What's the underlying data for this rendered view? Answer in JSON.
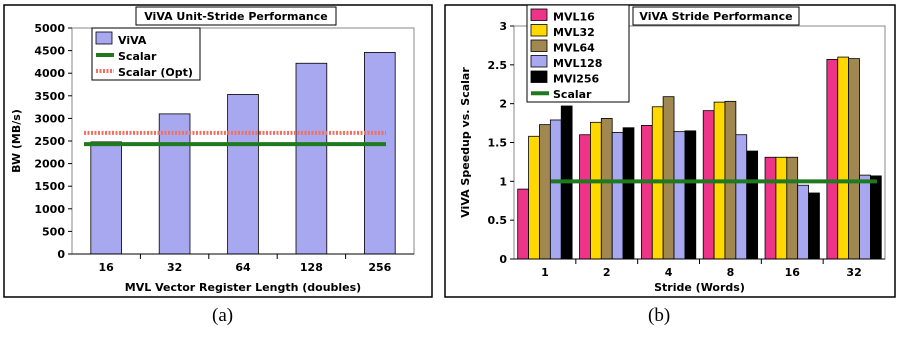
{
  "captions": {
    "a": "(a)",
    "b": "(b)"
  },
  "colors": {
    "viva": "#a8a8f0",
    "scalar": "#1f7a1f",
    "scalar_opt": "#f07060",
    "mvl16": "#ee3488",
    "mvl32": "#ffd800",
    "mvl64": "#a08850",
    "mvl128": "#a8a8f0",
    "mvl256": "#000000"
  },
  "chart_data": [
    {
      "type": "bar",
      "title": "ViVA Unit-Stride Performance",
      "xlabel": "MVL Vector Register Length (doubles)",
      "ylabel": "BW (MB/s)",
      "ylim": [
        0,
        5000
      ],
      "yticks": [
        0,
        500,
        1000,
        1500,
        2000,
        2500,
        3000,
        3500,
        4000,
        4500,
        5000
      ],
      "categories": [
        "16",
        "32",
        "64",
        "128",
        "256"
      ],
      "series": [
        {
          "name": "ViVA",
          "kind": "bar",
          "color": "#a8a8f0",
          "values": [
            2480,
            3100,
            3530,
            4220,
            4460
          ]
        },
        {
          "name": "Scalar",
          "kind": "line",
          "color": "#1f7a1f",
          "values": [
            2430,
            2430,
            2430,
            2430,
            2430
          ]
        },
        {
          "name": "Scalar (Opt)",
          "kind": "line",
          "color": "#f07060",
          "values": [
            2680,
            2680,
            2680,
            2680,
            2680
          ]
        }
      ],
      "legend": "top-left"
    },
    {
      "type": "bar",
      "title": "ViVA Stride Performance",
      "xlabel": "Stride (Words)",
      "ylabel": "ViVA Speedup vs. Scalar",
      "ylim": [
        0,
        3
      ],
      "yticks": [
        "0",
        "0.5",
        "1",
        "1.5",
        "2",
        "2.5",
        "3"
      ],
      "categories": [
        "1",
        "2",
        "4",
        "8",
        "16",
        "32"
      ],
      "series": [
        {
          "name": "MVL16",
          "kind": "bar",
          "color": "#ee3488",
          "values": [
            0.9,
            1.6,
            1.72,
            1.91,
            1.31,
            2.57
          ]
        },
        {
          "name": "MVL32",
          "kind": "bar",
          "color": "#ffd800",
          "values": [
            1.58,
            1.76,
            1.96,
            2.02,
            1.31,
            2.6
          ]
        },
        {
          "name": "MVL64",
          "kind": "bar",
          "color": "#a08850",
          "values": [
            1.73,
            1.81,
            2.09,
            2.03,
            1.31,
            2.58
          ]
        },
        {
          "name": "MVL128",
          "kind": "bar",
          "color": "#a8a8f0",
          "values": [
            1.79,
            1.63,
            1.64,
            1.6,
            0.95,
            1.08
          ]
        },
        {
          "name": "MVl256",
          "kind": "bar",
          "color": "#000000",
          "values": [
            1.97,
            1.69,
            1.65,
            1.39,
            0.85,
            1.07
          ]
        },
        {
          "name": "Scalar",
          "kind": "line",
          "color": "#1f7a1f",
          "values": [
            1,
            1,
            1,
            1,
            1,
            1
          ]
        }
      ],
      "legend": "top-left"
    }
  ]
}
